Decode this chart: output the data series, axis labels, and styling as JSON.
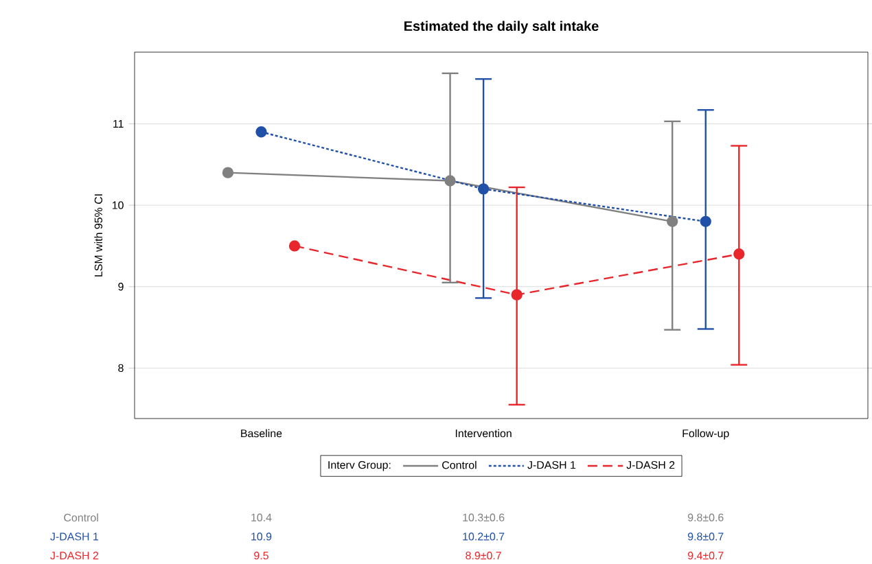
{
  "chart_data": {
    "type": "line",
    "title": "Estimated the daily salt intake",
    "ylabel": "LSM with 95% CI",
    "legend_title": "Interv Group:",
    "categories": [
      "Baseline",
      "Intervention",
      "Follow-up"
    ],
    "ylim": [
      7.38,
      11.88
    ],
    "yticks": [
      8,
      9,
      10,
      11
    ],
    "grid": "y",
    "legend": "bottom",
    "marker": "circle",
    "series": [
      {
        "name": "Control",
        "color": "#808080",
        "line_style": "solid",
        "values": [
          10.4,
          10.3,
          9.8
        ],
        "errors": [
          null,
          [
            9.05,
            11.62
          ],
          [
            8.47,
            11.03
          ]
        ],
        "value_labels": [
          "10.4",
          "10.3±0.6",
          "9.8±0.6"
        ]
      },
      {
        "name": "J-DASH 1",
        "color": "#2150a8",
        "line_style": "dotted",
        "values": [
          10.9,
          10.2,
          9.8
        ],
        "errors": [
          null,
          [
            8.86,
            11.55
          ],
          [
            8.48,
            11.17
          ]
        ],
        "value_labels": [
          "10.9",
          "10.2±0.7",
          "9.8±0.7"
        ]
      },
      {
        "name": "J-DASH 2",
        "color": "#e8262b",
        "line_style": "dashed",
        "values": [
          9.5,
          8.9,
          9.4
        ],
        "errors": [
          null,
          [
            7.55,
            10.22
          ],
          [
            8.04,
            10.73
          ]
        ],
        "value_labels": [
          "9.5",
          "8.9±0.7",
          "9.4±0.7"
        ]
      }
    ]
  }
}
